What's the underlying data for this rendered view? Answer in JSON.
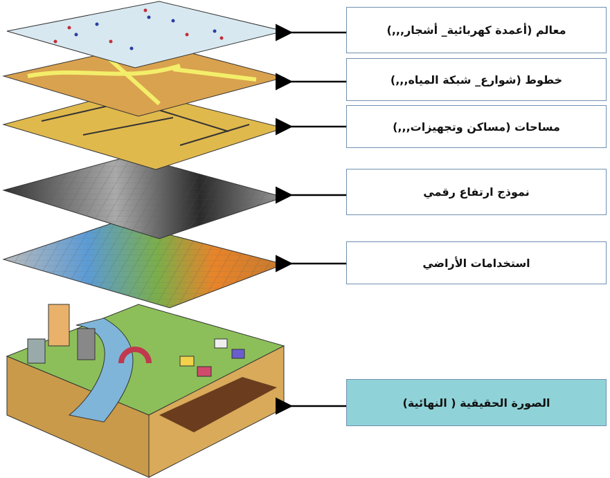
{
  "layers": [
    {
      "label": "معالم (أعمدة كهربائية_ أشجار,,,)"
    },
    {
      "label": "خطوط (شوارع_ شبكة المياه,,,)"
    },
    {
      "label": "مساحات (مساكن وتجهيزات,,,)"
    },
    {
      "label": "نموذج ارتفاع رقمي"
    },
    {
      "label": "استخدامات الأراضي"
    },
    {
      "label": "الصورة الحقيقية ( النهائية)"
    }
  ]
}
